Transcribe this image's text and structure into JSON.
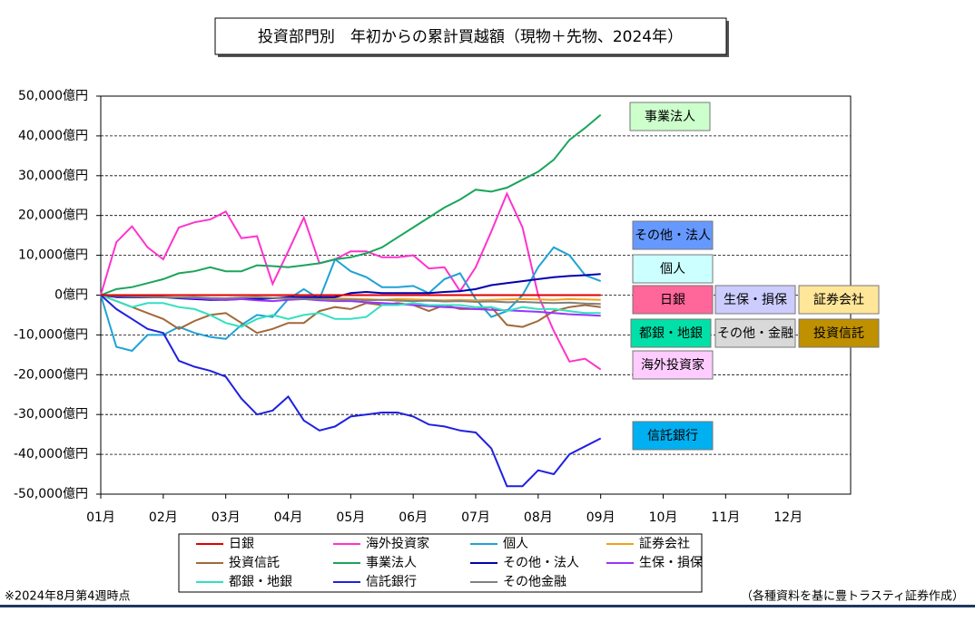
{
  "chart_data": {
    "type": "line",
    "title": "投資部門別　年初からの累計買越額（現物＋先物、2024年）",
    "note": "※2024年8月第4週時点",
    "source": "（各種資料を基に豊トラスティ証券作成）",
    "xlim": [
      1,
      13
    ],
    "xticks": [
      {
        "value": 1,
        "label": "01月"
      },
      {
        "value": 2,
        "label": "02月"
      },
      {
        "value": 3,
        "label": "03月"
      },
      {
        "value": 4,
        "label": "04月"
      },
      {
        "value": 5,
        "label": "05月"
      },
      {
        "value": 6,
        "label": "06月"
      },
      {
        "value": 7,
        "label": "07月"
      },
      {
        "value": 8,
        "label": "08月"
      },
      {
        "value": 9,
        "label": "09月"
      },
      {
        "value": 10,
        "label": "10月"
      },
      {
        "value": 11,
        "label": "11月"
      },
      {
        "value": 12,
        "label": "12月"
      }
    ],
    "ylim": [
      -50000,
      50000
    ],
    "yticks": [
      {
        "value": -50000,
        "label": "-50,000億円"
      },
      {
        "value": -40000,
        "label": "-40,000億円"
      },
      {
        "value": -30000,
        "label": "-30,000億円"
      },
      {
        "value": -20000,
        "label": "-20,000億円"
      },
      {
        "value": -10000,
        "label": "-10,000億円"
      },
      {
        "value": 0,
        "label": "0億円"
      },
      {
        "value": 10000,
        "label": "10,000億円"
      },
      {
        "value": 20000,
        "label": "20,000億円"
      },
      {
        "value": 30000,
        "label": "30,000億円"
      },
      {
        "value": 40000,
        "label": "40,000億円"
      },
      {
        "value": 50000,
        "label": "50,000億円"
      }
    ],
    "grid": true,
    "x": [
      1,
      1.25,
      1.5,
      1.75,
      2,
      2.25,
      2.5,
      2.75,
      3,
      3.25,
      3.5,
      3.75,
      4,
      4.25,
      4.5,
      4.75,
      5,
      5.25,
      5.5,
      5.75,
      6,
      6.25,
      6.5,
      6.75,
      7,
      7.25,
      7.5,
      7.75,
      8,
      8.25,
      8.5,
      8.75,
      9
    ],
    "series": [
      {
        "name": "日銀",
        "color": "#e00000",
        "values": [
          0,
          0,
          0,
          0,
          0,
          0,
          0,
          0,
          0,
          0,
          0,
          0,
          0,
          0,
          0,
          0,
          0,
          0,
          0,
          0,
          0,
          0,
          0,
          0,
          0,
          0,
          0,
          0,
          0,
          0,
          0,
          0,
          0
        ]
      },
      {
        "name": "海外投資家",
        "color": "#ff33cc",
        "values": [
          0,
          13300,
          17300,
          12000,
          9000,
          17000,
          18300,
          19000,
          21000,
          14300,
          14800,
          2800,
          11000,
          19500,
          8000,
          9000,
          11000,
          11000,
          9500,
          9500,
          10000,
          6700,
          7000,
          1000,
          7000,
          16000,
          25500,
          17000,
          0,
          -9000,
          -16700,
          -16000,
          -18700
        ]
      },
      {
        "name": "個人",
        "color": "#1fa2d6",
        "values": [
          0,
          -13000,
          -14000,
          -10000,
          -10000,
          -8000,
          -9500,
          -10500,
          -11000,
          -7500,
          -5000,
          -5500,
          -1000,
          1500,
          -1000,
          9000,
          6000,
          4500,
          2000,
          2000,
          2300,
          500,
          4000,
          5500,
          -1000,
          -5500,
          -4000,
          0,
          7000,
          12000,
          10000,
          5000,
          3500
        ]
      },
      {
        "name": "証券会社",
        "color": "#f0a020",
        "values": [
          0,
          -300,
          -500,
          -500,
          -600,
          -700,
          -800,
          -800,
          -900,
          -800,
          -700,
          -800,
          -700,
          -900,
          -1000,
          -800,
          -900,
          -1000,
          -1200,
          -1000,
          -1100,
          -1200,
          -1300,
          -1200,
          -1300,
          -1200,
          -1100,
          -1000,
          -1100,
          -1200,
          -1000,
          -1100,
          -1200
        ]
      },
      {
        "name": "投資信託",
        "color": "#a0693a",
        "values": [
          0,
          -1500,
          -3000,
          -4500,
          -6000,
          -8500,
          -6500,
          -5000,
          -4500,
          -7000,
          -9500,
          -8500,
          -7000,
          -7000,
          -4000,
          -3000,
          -3500,
          -2000,
          -2500,
          -2000,
          -2500,
          -4000,
          -2500,
          -3500,
          -3500,
          -3000,
          -7500,
          -8000,
          -6500,
          -4000,
          -3000,
          -2500,
          -3000
        ]
      },
      {
        "name": "事業法人",
        "color": "#1aa55a",
        "values": [
          0,
          1500,
          2000,
          3000,
          4000,
          5500,
          6000,
          7000,
          6000,
          6000,
          7500,
          7300,
          7000,
          7500,
          8000,
          9000,
          9500,
          10500,
          12000,
          14500,
          17000,
          19500,
          22000,
          24000,
          26500,
          26000,
          27000,
          29000,
          31000,
          34000,
          39000,
          42000,
          45300
        ]
      },
      {
        "name": "その他・法人",
        "color": "#0000b0",
        "values": [
          0,
          -500,
          -500,
          -500,
          -500,
          -800,
          -1000,
          -1200,
          -1200,
          -1000,
          -1000,
          -800,
          -500,
          -500,
          -500,
          -500,
          500,
          800,
          500,
          500,
          500,
          500,
          800,
          1000,
          1500,
          2500,
          3000,
          3500,
          4000,
          4500,
          4800,
          5000,
          5300
        ]
      },
      {
        "name": "生保・損保",
        "color": "#9933ff",
        "values": [
          0,
          -200,
          -300,
          -300,
          -500,
          -600,
          -800,
          -1000,
          -1200,
          -1000,
          -1300,
          -1500,
          -1200,
          -1000,
          -1300,
          -1500,
          -1500,
          -1800,
          -2000,
          -2200,
          -2500,
          -2800,
          -3000,
          -3200,
          -3500,
          -3700,
          -3800,
          -4000,
          -4200,
          -4500,
          -4800,
          -5000,
          -5200
        ]
      },
      {
        "name": "都銀・地銀",
        "color": "#33e0c0",
        "values": [
          0,
          -1500,
          -3000,
          -2000,
          -2000,
          -3000,
          -3500,
          -5000,
          -7000,
          -8000,
          -6000,
          -5000,
          -6000,
          -5000,
          -4500,
          -6000,
          -6000,
          -5500,
          -2500,
          -2500,
          -2000,
          -2500,
          -2500,
          -2500,
          -3000,
          -3000,
          -4000,
          -3000,
          -3500,
          -3500,
          -4000,
          -4500,
          -4500
        ]
      },
      {
        "name": "信託銀行",
        "color": "#2020e0",
        "values": [
          0,
          -3500,
          -6000,
          -8500,
          -9500,
          -16500,
          -18000,
          -19000,
          -20500,
          -26000,
          -30000,
          -29000,
          -25500,
          -31500,
          -34000,
          -33000,
          -30500,
          -30000,
          -29500,
          -29500,
          -30500,
          -32500,
          -33000,
          -34000,
          -34500,
          -38500,
          -48000,
          -48000,
          -44000,
          -45000,
          -40000,
          -38000,
          -36000
        ]
      },
      {
        "name": "その他金融",
        "color": "#808080",
        "values": [
          0,
          -200,
          -300,
          -400,
          -500,
          -600,
          -500,
          -700,
          -800,
          -600,
          -500,
          -700,
          -800,
          -900,
          -1000,
          -1200,
          -1100,
          -1300,
          -1200,
          -1400,
          -1500,
          -1400,
          -1600,
          -1500,
          -1700,
          -1600,
          -1800,
          -1700,
          -1900,
          -2000,
          -1900,
          -2100,
          -2200
        ]
      }
    ],
    "annotations": [
      {
        "text": "事業法人",
        "color": "#ccffcc"
      },
      {
        "text": "その他・法人",
        "color": "#6699ff"
      },
      {
        "text": "個人",
        "color": "#ccffff"
      },
      {
        "text": "日銀",
        "color": "#ff6699"
      },
      {
        "text": "生保・損保",
        "color": "#ccccff"
      },
      {
        "text": "証券会社",
        "color": "#ffe699"
      },
      {
        "text": "都銀・地銀",
        "color": "#00e0a8"
      },
      {
        "text": "その他・金融",
        "color": "#d9d9d9"
      },
      {
        "text": "投資信託",
        "color": "#bf9000"
      },
      {
        "text": "海外投資家",
        "color": "#ffccff"
      },
      {
        "text": "信託銀行",
        "color": "#00b0f0"
      }
    ]
  }
}
